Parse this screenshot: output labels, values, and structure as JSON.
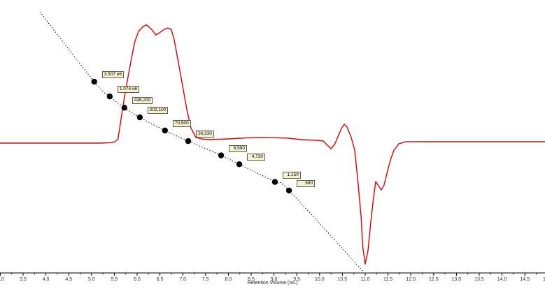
{
  "chart_data": {
    "type": "line",
    "title": "",
    "xlabel": "Retention Volume (mL)",
    "ylabel": "",
    "x_axis": {
      "min": 3.0,
      "max": 15.0,
      "label_step": 0.5,
      "minor_step": 0.25,
      "unit": "mL",
      "axis_color": "#000000",
      "tick_label_color": "#333333"
    },
    "y_axis": {
      "visible": false,
      "signal_units": "arbitrary"
    },
    "detector_trace": {
      "name": "detector-signal",
      "color": "#dd0000",
      "points": [
        [
          3.0,
          0.0
        ],
        [
          3.6,
          0.0
        ],
        [
          4.2,
          0.0
        ],
        [
          4.8,
          0.0
        ],
        [
          5.2,
          0.0
        ],
        [
          5.4,
          0.003
        ],
        [
          5.5,
          0.008
        ],
        [
          5.58,
          0.03
        ],
        [
          5.65,
          0.19
        ],
        [
          5.72,
          0.35
        ],
        [
          5.8,
          0.51
        ],
        [
          5.88,
          0.66
        ],
        [
          5.95,
          0.78
        ],
        [
          6.03,
          0.86
        ],
        [
          6.14,
          0.9
        ],
        [
          6.21,
          0.91
        ],
        [
          6.32,
          0.875
        ],
        [
          6.41,
          0.833
        ],
        [
          6.5,
          0.852
        ],
        [
          6.58,
          0.873
        ],
        [
          6.67,
          0.887
        ],
        [
          6.75,
          0.875
        ],
        [
          6.81,
          0.8
        ],
        [
          6.87,
          0.688
        ],
        [
          6.98,
          0.473
        ],
        [
          7.09,
          0.258
        ],
        [
          7.18,
          0.118
        ],
        [
          7.29,
          0.043
        ],
        [
          7.45,
          0.03
        ],
        [
          7.6,
          0.027
        ],
        [
          8.0,
          0.032
        ],
        [
          8.4,
          0.04
        ],
        [
          8.8,
          0.043
        ],
        [
          9.3,
          0.038
        ],
        [
          9.6,
          0.027
        ],
        [
          9.9,
          0.022
        ],
        [
          10.08,
          0.016
        ],
        [
          10.17,
          -0.016
        ],
        [
          10.25,
          -0.043
        ],
        [
          10.33,
          -0.011
        ],
        [
          10.4,
          0.048
        ],
        [
          10.48,
          0.113
        ],
        [
          10.54,
          0.145
        ],
        [
          10.6,
          0.124
        ],
        [
          10.69,
          0.048
        ],
        [
          10.77,
          -0.054
        ],
        [
          10.84,
          -0.296
        ],
        [
          10.91,
          -0.565
        ],
        [
          10.95,
          -0.806
        ],
        [
          11.0,
          -0.93
        ],
        [
          11.06,
          -0.833
        ],
        [
          11.12,
          -0.618
        ],
        [
          11.18,
          -0.43
        ],
        [
          11.23,
          -0.296
        ],
        [
          11.29,
          -0.328
        ],
        [
          11.35,
          -0.36
        ],
        [
          11.41,
          -0.328
        ],
        [
          11.47,
          -0.242
        ],
        [
          11.55,
          -0.134
        ],
        [
          11.63,
          -0.054
        ],
        [
          11.74,
          -0.005
        ],
        [
          11.89,
          0.01
        ],
        [
          12.2,
          0.011
        ],
        [
          13.0,
          0.011
        ],
        [
          13.9,
          0.011
        ],
        [
          14.95,
          0.011
        ]
      ]
    },
    "calibration": {
      "curve_style": "dotted",
      "curve_color": "#000000",
      "marker_color": "#000000",
      "label_box_bg": "#f6f2d2",
      "label_box_border": "#5f5b4d",
      "curve_start": {
        "retention_ml": 3.87,
        "log_mw": 8.97
      },
      "curve_end": {
        "retention_ml": 10.97,
        "log_mw": -0.08
      },
      "points": [
        {
          "retention_ml": 5.06,
          "mw": 3507000,
          "log_mw": 6.545,
          "label": "3.507 e6"
        },
        {
          "retention_ml": 5.4,
          "mw": 1074000,
          "log_mw": 6.031,
          "label": "1.074 e6"
        },
        {
          "retention_ml": 5.72,
          "mw": 436200,
          "log_mw": 5.64,
          "label": "436,200"
        },
        {
          "retention_ml": 6.06,
          "mw": 202100,
          "log_mw": 5.306,
          "label": "202,100"
        },
        {
          "retention_ml": 6.61,
          "mw": 70500,
          "log_mw": 4.848,
          "label": "70,500"
        },
        {
          "retention_ml": 7.12,
          "mw": 30230,
          "log_mw": 4.48,
          "label": "30,230"
        },
        {
          "retention_ml": 7.84,
          "mw": 9590,
          "log_mw": 3.982,
          "label": "9,590"
        },
        {
          "retention_ml": 8.24,
          "mw": 4730,
          "log_mw": 3.675,
          "label": "4,730"
        },
        {
          "retention_ml": 9.02,
          "mw": 1150,
          "log_mw": 3.061,
          "label": "1,150"
        },
        {
          "retention_ml": 9.33,
          "mw": 580,
          "log_mw": 2.763,
          "label": "580"
        }
      ]
    }
  }
}
